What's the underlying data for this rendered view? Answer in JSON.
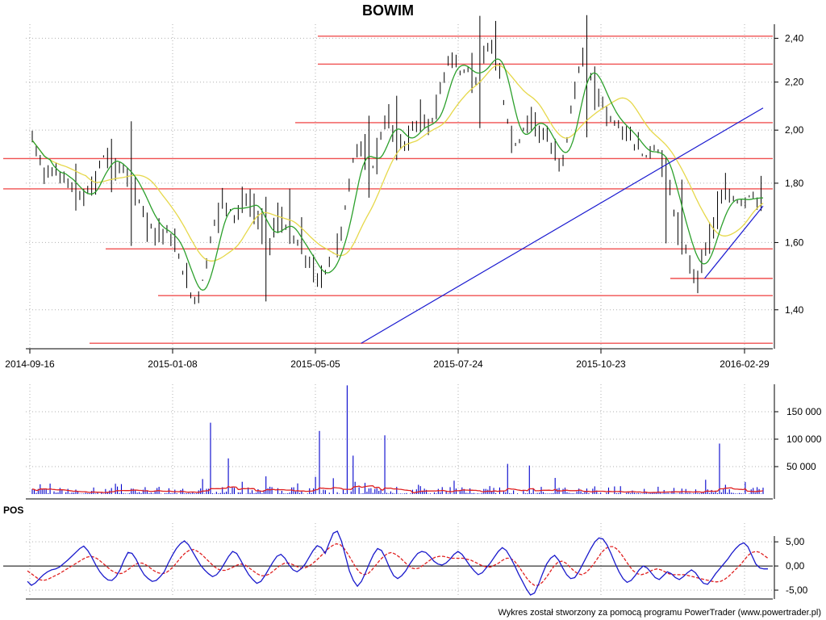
{
  "chart_data": [
    {
      "type": "candlestick",
      "title": "BOWIM",
      "x_tick_labels": [
        "2014-09-16",
        "2015-01-08",
        "2015-05-05",
        "2015-07-24",
        "2015-10-23",
        "2016-02-29"
      ],
      "y_tick_labels": [
        "2,40",
        "2,20",
        "2,00",
        "1,80",
        "1,60",
        "1,40"
      ],
      "y_ticks": [
        2.4,
        2.2,
        2.0,
        1.8,
        1.6,
        1.4
      ],
      "ylim": [
        1.3,
        2.46
      ],
      "scale": "log",
      "n_sessions": 370,
      "grid": true,
      "series": [
        {
          "style": "price",
          "color": "#000000",
          "close": [
            1.96,
            1.92,
            1.88,
            1.84,
            1.86,
            1.83,
            1.84,
            1.82,
            1.83,
            1.8,
            1.78,
            1.76,
            1.75,
            1.75,
            1.77,
            1.78,
            1.82,
            1.88,
            1.9,
            1.89,
            1.88,
            1.86,
            1.85,
            1.84,
            1.82,
            1.8,
            1.76,
            1.73,
            1.7,
            1.67,
            1.65,
            1.64,
            1.63,
            1.64,
            1.63,
            1.6,
            1.58,
            1.54,
            1.5,
            1.46,
            1.44,
            1.43,
            1.45,
            1.5,
            1.57,
            1.63,
            1.68,
            1.72,
            1.74,
            1.72,
            1.7,
            1.68,
            1.72,
            1.75,
            1.73,
            1.72,
            1.7,
            1.66,
            1.62,
            1.6,
            1.62,
            1.66,
            1.68,
            1.66,
            1.64,
            1.62,
            1.6,
            1.58,
            1.56,
            1.54,
            1.52,
            1.5,
            1.48,
            1.5,
            1.53,
            1.56,
            1.58,
            1.62,
            1.68,
            1.76,
            1.86,
            1.92,
            1.96,
            1.9,
            1.86,
            1.84,
            1.9,
            1.96,
            2.02,
            2.04,
            2.02,
            1.98,
            1.96,
            1.94,
            1.96,
            2.0,
            2.02,
            2.04,
            2.02,
            2.0,
            2.04,
            2.08,
            2.14,
            2.22,
            2.3,
            2.32,
            2.28,
            2.24,
            2.24,
            2.26,
            2.24,
            2.22,
            2.24,
            2.28,
            2.34,
            2.36,
            2.3,
            2.22,
            2.12,
            2.04,
            1.98,
            1.94,
            1.96,
            2.0,
            2.04,
            2.06,
            2.04,
            2.0,
            1.98,
            1.96,
            1.92,
            1.9,
            1.88,
            1.9,
            1.98,
            2.08,
            2.18,
            2.26,
            2.28,
            2.26,
            2.22,
            2.18,
            2.14,
            2.1,
            2.06,
            2.04,
            2.02,
            2.02,
            2.0,
            1.98,
            1.96,
            1.94,
            1.92,
            1.9,
            1.9,
            1.92,
            1.94,
            1.9,
            1.86,
            1.8,
            1.74,
            1.68,
            1.64,
            1.6,
            1.56,
            1.52,
            1.5,
            1.52,
            1.56,
            1.6,
            1.64,
            1.68,
            1.72,
            1.74,
            1.76,
            1.75,
            1.74,
            1.73,
            1.74,
            1.75,
            1.76,
            1.75,
            1.74,
            1.74
          ]
        },
        {
          "style": "ma-short",
          "color": "#2ca02c"
        },
        {
          "style": "ma-long",
          "color": "#e6d84a"
        }
      ],
      "horizontal_levels": [
        2.41,
        2.28,
        2.03,
        1.89,
        1.78,
        1.58,
        1.49,
        1.44,
        1.31
      ],
      "trendlines": [
        {
          "from": [
            1.31,
            0.45
          ],
          "to": [
            2.09,
            1.0
          ]
        },
        {
          "from": [
            1.49,
            0.92
          ],
          "to": [
            1.72,
            1.0
          ]
        }
      ]
    },
    {
      "type": "bar",
      "title": "",
      "y_tick_labels": [
        "150 000",
        "100 000",
        "50 000"
      ],
      "y_ticks": [
        150000,
        100000,
        50000
      ],
      "ylim": [
        0,
        200000
      ],
      "spikes": [
        {
          "session": 0.49,
          "value": 130000
        },
        {
          "session": 0.535,
          "value": 65000
        },
        {
          "session": 0.785,
          "value": 115000
        },
        {
          "session": 0.862,
          "value": 198000
        },
        {
          "session": 0.878,
          "value": 70000
        },
        {
          "session": 0.967,
          "value": 107000
        },
        {
          "session": 1.3,
          "value": 55000
        },
        {
          "session": 1.36,
          "value": 52000
        },
        {
          "session": 1.88,
          "value": 92000
        }
      ],
      "series": [
        {
          "name": "",
          "style": "bars",
          "color": "#0000cc"
        },
        {
          "name": "",
          "style": "average",
          "color": "#e02020"
        }
      ]
    },
    {
      "type": "line",
      "title": "POS",
      "y_tick_labels": [
        "5,00",
        "0,00",
        "-5,00"
      ],
      "y_ticks": [
        5,
        0,
        -5
      ],
      "ylim": [
        -6.5,
        8.2
      ],
      "series": [
        {
          "name": "",
          "color": "#1a1acc",
          "style": "solid",
          "values": [
            -3.2,
            -4.0,
            -3.5,
            -2.6,
            -1.8,
            -1.2,
            -0.8,
            -0.6,
            -0.2,
            0.5,
            1.2,
            2.0,
            2.8,
            3.6,
            4.1,
            3.2,
            1.8,
            0.2,
            -1.2,
            -2.2,
            -2.9,
            -3.0,
            -2.2,
            -0.8,
            1.2,
            2.8,
            2.6,
            1.4,
            -0.4,
            -1.8,
            -2.6,
            -3.2,
            -3.0,
            -2.2,
            -1.2,
            0.6,
            2.2,
            3.6,
            4.6,
            5.2,
            4.4,
            3.0,
            1.6,
            0.2,
            -0.8,
            -1.6,
            -2.2,
            -1.8,
            -0.8,
            0.6,
            2.0,
            3.0,
            2.6,
            1.2,
            -0.4,
            -1.8,
            -2.8,
            -3.6,
            -3.2,
            -2.0,
            -0.6,
            0.8,
            2.0,
            2.4,
            1.6,
            0.2,
            -0.8,
            -1.2,
            -0.6,
            0.4,
            1.8,
            3.2,
            4.2,
            3.8,
            2.6,
            4.8,
            6.8,
            7.2,
            5.2,
            2.2,
            -1.0,
            -3.0,
            -4.2,
            -3.2,
            -1.4,
            0.6,
            2.4,
            3.6,
            3.2,
            1.6,
            -0.4,
            -2.0,
            -2.6,
            -2.0,
            -1.0,
            0.4,
            1.6,
            2.6,
            3.0,
            2.8,
            2.0,
            1.0,
            0.4,
            0.2,
            0.6,
            1.4,
            2.4,
            3.0,
            2.4,
            1.2,
            0.0,
            -1.0,
            -1.8,
            -1.4,
            -0.4,
            0.6,
            1.8,
            3.0,
            3.8,
            3.2,
            1.8,
            0.2,
            -1.6,
            -3.2,
            -4.8,
            -6.0,
            -5.6,
            -3.8,
            -1.6,
            0.4,
            1.6,
            2.2,
            1.2,
            -0.4,
            -1.8,
            -2.6,
            -2.4,
            -1.2,
            0.4,
            2.0,
            3.6,
            5.0,
            5.8,
            5.6,
            4.4,
            2.6,
            0.6,
            -1.2,
            -2.6,
            -3.4,
            -3.0,
            -2.0,
            -0.8,
            0.0,
            -0.4,
            -1.4,
            -2.4,
            -2.8,
            -2.0,
            -1.2,
            -1.6,
            -2.4,
            -2.8,
            -2.2,
            -1.4,
            -0.8,
            -1.4,
            -2.6,
            -3.6,
            -3.8,
            -2.8,
            -1.6,
            -0.6,
            0.4,
            1.4,
            2.6,
            3.6,
            4.4,
            4.8,
            4.0,
            2.2,
            0.4,
            -0.4,
            -0.6,
            -0.6
          ]
        },
        {
          "name": "",
          "color": "#e02020",
          "style": "dashed",
          "values": [
            -1.0,
            -1.6,
            -2.2,
            -2.8,
            -3.0,
            -2.8,
            -2.4,
            -2.0,
            -1.6,
            -1.1,
            -0.6,
            -0.1,
            0.4,
            0.9,
            1.4,
            1.8,
            2.0,
            1.8,
            1.3,
            0.6,
            -0.1,
            -0.8,
            -1.3,
            -1.6,
            -1.5,
            -1.0,
            -0.4,
            0.2,
            0.6,
            0.6,
            0.2,
            -0.4,
            -1.0,
            -1.4,
            -1.6,
            -1.4,
            -0.8,
            0.0,
            1.0,
            2.0,
            2.8,
            3.3,
            3.4,
            3.0,
            2.4,
            1.6,
            0.8,
            0.0,
            -0.6,
            -0.9,
            -0.9,
            -0.6,
            -0.2,
            0.2,
            0.4,
            0.2,
            -0.4,
            -1.0,
            -1.6,
            -2.0,
            -2.0,
            -1.7,
            -1.1,
            -0.4,
            0.2,
            0.6,
            0.6,
            0.3,
            -0.1,
            -0.4,
            -0.4,
            -0.1,
            0.5,
            1.2,
            2.0,
            2.8,
            3.6,
            4.2,
            4.6,
            4.4,
            3.6,
            2.4,
            1.0,
            -0.4,
            -1.4,
            -1.8,
            -1.6,
            -0.8,
            0.2,
            1.2,
            2.0,
            2.6,
            2.8,
            2.4,
            1.8,
            1.0,
            0.2,
            -0.4,
            -0.6,
            -0.4,
            0.2,
            0.8,
            1.4,
            1.8,
            2.0,
            2.0,
            1.8,
            1.6,
            1.6,
            1.6,
            1.6,
            1.4,
            1.2,
            0.8,
            0.4,
            0.0,
            -0.2,
            -0.2,
            0.2,
            0.6,
            1.2,
            1.6,
            1.6,
            1.0,
            0.0,
            -1.2,
            -2.4,
            -3.4,
            -4.0,
            -4.0,
            -3.4,
            -2.4,
            -1.2,
            0.0,
            0.8,
            1.0,
            0.6,
            -0.2,
            -1.0,
            -1.6,
            -1.8,
            -1.4,
            -0.6,
            0.4,
            1.6,
            2.8,
            3.6,
            4.0,
            4.0,
            3.4,
            2.4,
            1.2,
            0.0,
            -1.0,
            -1.6,
            -1.8,
            -1.6,
            -1.2,
            -0.8,
            -0.6,
            -0.8,
            -1.2,
            -1.6,
            -1.8,
            -1.8,
            -1.8,
            -1.8,
            -2.0,
            -2.2,
            -2.4,
            -2.6,
            -2.8,
            -3.0,
            -3.2,
            -3.3,
            -3.2,
            -2.8,
            -2.2,
            -1.4,
            -0.6,
            0.2,
            1.2,
            2.2,
            2.8,
            3.0,
            2.8,
            2.2,
            1.6
          ]
        }
      ]
    }
  ],
  "footer": {
    "credit": "Wykres został stworzony za pomocą programu PowerTrader (www.powertrader.pl)"
  },
  "colors": {
    "levels": "#f05050",
    "trend": "#1a1ad0",
    "grid": "#b0b0b0",
    "axis": "#000000"
  }
}
